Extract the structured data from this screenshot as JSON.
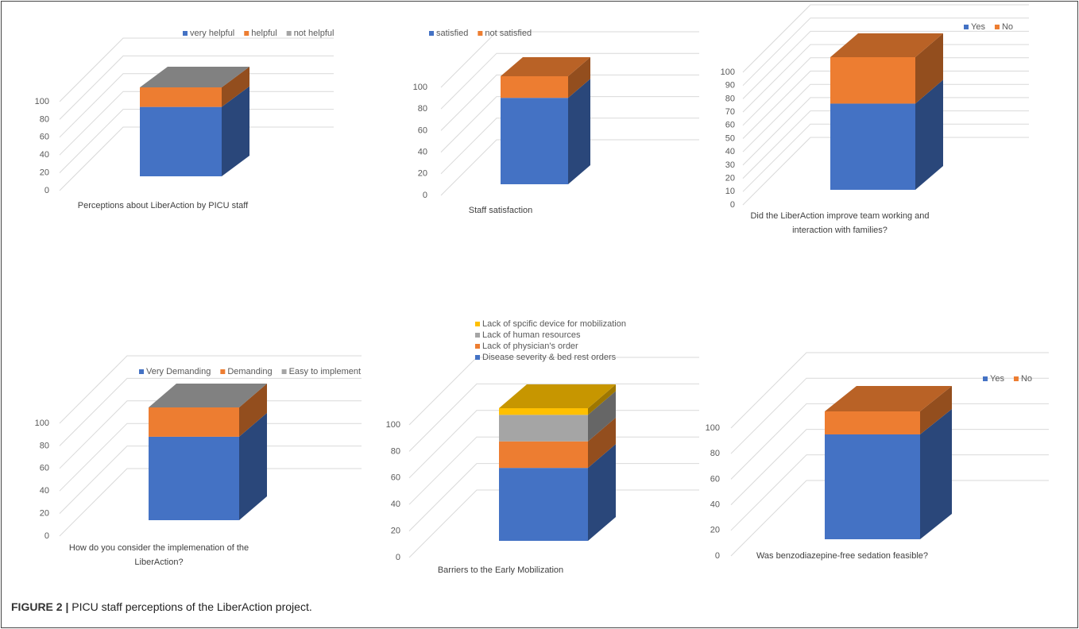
{
  "chart_data": [
    {
      "type": "bar3d",
      "categories": [
        "Perceptions about LiberAction by PICU staff"
      ],
      "series": [
        {
          "name": "very helpful",
          "color": "#4472c4",
          "values": [
            78
          ]
        },
        {
          "name": "helpful",
          "color": "#ed7d31",
          "values": [
            22
          ]
        },
        {
          "name": "not helpful",
          "color": "#a5a5a5",
          "values": [
            0
          ]
        }
      ],
      "ylim": [
        0,
        100
      ],
      "yticks": [
        0,
        20,
        40,
        60,
        80,
        100
      ],
      "grid": true,
      "legend": "top",
      "stacked": true
    },
    {
      "type": "bar3d",
      "categories": [
        "Staff satisfaction"
      ],
      "series": [
        {
          "name": "satisfied",
          "color": "#4472c4",
          "values": [
            80
          ]
        },
        {
          "name": "not satisfied",
          "color": "#ed7d31",
          "values": [
            20
          ]
        }
      ],
      "ylim": [
        0,
        100
      ],
      "yticks": [
        0,
        20,
        40,
        60,
        80,
        100
      ],
      "grid": true,
      "legend": "top",
      "stacked": true
    },
    {
      "type": "bar3d",
      "categories": [
        "Did the LiberAction improve team working and interaction with families?"
      ],
      "series": [
        {
          "name": "Yes",
          "color": "#4472c4",
          "values": [
            65
          ]
        },
        {
          "name": "No",
          "color": "#ed7d31",
          "values": [
            35
          ]
        }
      ],
      "ylim": [
        0,
        100
      ],
      "yticks": [
        0,
        10,
        20,
        30,
        40,
        50,
        60,
        70,
        80,
        90,
        100
      ],
      "grid": true,
      "legend": "top-right",
      "stacked": true
    },
    {
      "type": "bar3d",
      "categories": [
        "How do you consider the implemenation of the LiberAction?"
      ],
      "series": [
        {
          "name": "Very Demanding",
          "color": "#4472c4",
          "values": [
            74
          ]
        },
        {
          "name": "Demanding",
          "color": "#ed7d31",
          "values": [
            26
          ]
        },
        {
          "name": "Easy to implement",
          "color": "#a5a5a5",
          "values": [
            0
          ]
        }
      ],
      "ylim": [
        0,
        100
      ],
      "yticks": [
        0,
        20,
        40,
        60,
        80,
        100
      ],
      "grid": true,
      "legend": "top",
      "stacked": true
    },
    {
      "type": "bar3d",
      "categories": [
        "Barriers to the Early Mobilization"
      ],
      "series": [
        {
          "name": "Disease severity & bed rest orders",
          "color": "#4472c4",
          "values": [
            55
          ]
        },
        {
          "name": "Lack of physician's order",
          "color": "#ed7d31",
          "values": [
            20
          ]
        },
        {
          "name": "Lack of human resources",
          "color": "#a5a5a5",
          "values": [
            20
          ]
        },
        {
          "name": "Lack of spcific device for mobilization",
          "color": "#ffc000",
          "values": [
            5
          ]
        }
      ],
      "ylim": [
        0,
        100
      ],
      "yticks": [
        0,
        20,
        40,
        60,
        80,
        100
      ],
      "grid": true,
      "legend": "top-vertical",
      "stacked": true
    },
    {
      "type": "bar3d",
      "categories": [
        "Was benzodiazepine-free sedation  feasible?"
      ],
      "series": [
        {
          "name": "Yes",
          "color": "#4472c4",
          "values": [
            82
          ]
        },
        {
          "name": "No",
          "color": "#ed7d31",
          "values": [
            18
          ]
        }
      ],
      "ylim": [
        0,
        100
      ],
      "yticks": [
        0,
        20,
        40,
        60,
        80,
        100
      ],
      "grid": true,
      "legend": "top-right",
      "stacked": true
    }
  ],
  "caption": {
    "label": "FIGURE 2 |",
    "text": "PICU staff perceptions of the LiberAction project."
  }
}
